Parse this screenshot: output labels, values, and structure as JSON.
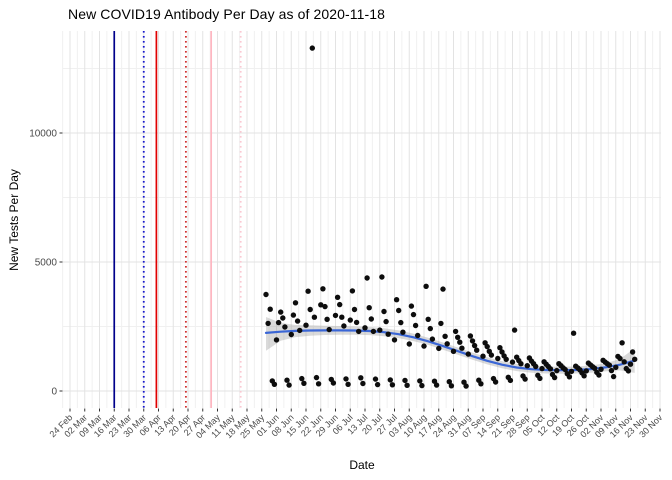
{
  "title": "New COVID19 Antibody Per Day as of 2020-11-18",
  "chart_data": {
    "type": "scatter",
    "title": "New COVID19 Antibody Per Day as of 2020-11-18",
    "xlabel": "Date",
    "ylabel": "New Tests Per Day",
    "grid": true,
    "legend": "none",
    "x_range": [
      "2020-02-24",
      "2020-11-30"
    ],
    "ylim": [
      -660,
      13950
    ],
    "y_axis": {
      "ticks": [
        0,
        5000,
        10000
      ],
      "minor_ticks": [
        2500,
        7500,
        12500
      ]
    },
    "x_axis": {
      "tick_labels": [
        "24 Feb",
        "02 Mar",
        "09 Mar",
        "16 Mar",
        "23 Mar",
        "30 Mar",
        "06 Apr",
        "13 Apr",
        "20 Apr",
        "27 Apr",
        "04 May",
        "11 May",
        "18 May",
        "25 May",
        "01 Jun",
        "08 Jun",
        "15 Jun",
        "22 Jun",
        "29 Jun",
        "06 Jul",
        "13 Jul",
        "20 Jul",
        "27 Jul",
        "03 Aug",
        "10 Aug",
        "17 Aug",
        "24 Aug",
        "31 Aug",
        "07 Sep",
        "14 Sep",
        "21 Sep",
        "28 Sep",
        "05 Oct",
        "12 Oct",
        "19 Oct",
        "26 Oct",
        "02 Nov",
        "09 Nov",
        "16 Nov",
        "23 Nov",
        "30 Nov"
      ],
      "tick_dates": [
        "2020-02-24",
        "2020-03-02",
        "2020-03-09",
        "2020-03-16",
        "2020-03-23",
        "2020-03-30",
        "2020-04-06",
        "2020-04-13",
        "2020-04-20",
        "2020-04-27",
        "2020-05-04",
        "2020-05-11",
        "2020-05-18",
        "2020-05-25",
        "2020-06-01",
        "2020-06-08",
        "2020-06-15",
        "2020-06-22",
        "2020-06-29",
        "2020-07-06",
        "2020-07-13",
        "2020-07-20",
        "2020-07-27",
        "2020-08-03",
        "2020-08-10",
        "2020-08-17",
        "2020-08-24",
        "2020-08-31",
        "2020-09-07",
        "2020-09-14",
        "2020-09-21",
        "2020-09-28",
        "2020-10-05",
        "2020-10-12",
        "2020-10-19",
        "2020-10-26",
        "2020-11-02",
        "2020-11-09",
        "2020-11-16",
        "2020-11-23",
        "2020-11-30"
      ]
    },
    "vlines": [
      {
        "date": "2020-03-16",
        "color": "#00008B",
        "style": "solid"
      },
      {
        "date": "2020-03-30",
        "color": "#1515CD",
        "style": "dotted"
      },
      {
        "date": "2020-04-05",
        "color": "#E00000",
        "style": "solid"
      },
      {
        "date": "2020-04-19",
        "color": "#D03030",
        "style": "dotted"
      },
      {
        "date": "2020-05-01",
        "color": "#FFB6C1",
        "style": "solid"
      },
      {
        "date": "2020-05-15",
        "color": "#FAC8D2",
        "style": "dotted"
      }
    ],
    "smooth": {
      "color": "#3A66D6",
      "ribbon_color": "#9e9e9e",
      "points": [
        [
          "2020-05-27",
          2250,
          1560,
          2870
        ],
        [
          "2020-06-03",
          2300,
          1950,
          2640
        ],
        [
          "2020-06-10",
          2330,
          2090,
          2560
        ],
        [
          "2020-06-17",
          2345,
          2140,
          2545
        ],
        [
          "2020-06-24",
          2350,
          2170,
          2530
        ],
        [
          "2020-07-01",
          2350,
          2180,
          2520
        ],
        [
          "2020-07-08",
          2345,
          2180,
          2505
        ],
        [
          "2020-07-15",
          2325,
          2165,
          2480
        ],
        [
          "2020-07-22",
          2280,
          2125,
          2435
        ],
        [
          "2020-07-29",
          2200,
          2050,
          2350
        ],
        [
          "2020-08-05",
          2080,
          1935,
          2225
        ],
        [
          "2020-08-12",
          1925,
          1785,
          2065
        ],
        [
          "2020-08-19",
          1740,
          1600,
          1880
        ],
        [
          "2020-08-26",
          1545,
          1405,
          1685
        ],
        [
          "2020-09-02",
          1350,
          1210,
          1490
        ],
        [
          "2020-09-09",
          1170,
          1030,
          1310
        ],
        [
          "2020-09-16",
          1020,
          880,
          1160
        ],
        [
          "2020-09-23",
          910,
          770,
          1050
        ],
        [
          "2020-09-30",
          845,
          710,
          980
        ],
        [
          "2020-10-07",
          815,
          680,
          950
        ],
        [
          "2020-10-14",
          805,
          670,
          940
        ],
        [
          "2020-10-21",
          815,
          680,
          950
        ],
        [
          "2020-10-28",
          850,
          710,
          990
        ],
        [
          "2020-11-04",
          915,
          760,
          1070
        ],
        [
          "2020-11-11",
          1020,
          800,
          1240
        ],
        [
          "2020-11-18",
          1180,
          700,
          1660
        ]
      ]
    },
    "points": [
      [
        "2020-05-27",
        3740
      ],
      [
        "2020-05-28",
        2620
      ],
      [
        "2020-05-29",
        3170
      ],
      [
        "2020-05-30",
        390
      ],
      [
        "2020-05-31",
        260
      ],
      [
        "2020-06-01",
        1980
      ],
      [
        "2020-06-02",
        2650
      ],
      [
        "2020-06-03",
        3060
      ],
      [
        "2020-06-04",
        2830
      ],
      [
        "2020-06-05",
        2480
      ],
      [
        "2020-06-06",
        420
      ],
      [
        "2020-06-07",
        230
      ],
      [
        "2020-06-08",
        2190
      ],
      [
        "2020-06-09",
        2940
      ],
      [
        "2020-06-10",
        3420
      ],
      [
        "2020-06-11",
        2710
      ],
      [
        "2020-06-12",
        2350
      ],
      [
        "2020-06-13",
        480
      ],
      [
        "2020-06-14",
        300
      ],
      [
        "2020-06-15",
        2550
      ],
      [
        "2020-06-16",
        3870
      ],
      [
        "2020-06-17",
        3160
      ],
      [
        "2020-06-18",
        13290
      ],
      [
        "2020-06-19",
        2860
      ],
      [
        "2020-06-20",
        520
      ],
      [
        "2020-06-21",
        280
      ],
      [
        "2020-06-22",
        3340
      ],
      [
        "2020-06-23",
        3960
      ],
      [
        "2020-06-24",
        3270
      ],
      [
        "2020-06-25",
        2780
      ],
      [
        "2020-06-26",
        2380
      ],
      [
        "2020-06-27",
        450
      ],
      [
        "2020-06-28",
        310
      ],
      [
        "2020-06-29",
        2930
      ],
      [
        "2020-06-30",
        3630
      ],
      [
        "2020-07-01",
        3350
      ],
      [
        "2020-07-02",
        2860
      ],
      [
        "2020-07-03",
        2520
      ],
      [
        "2020-07-04",
        470
      ],
      [
        "2020-07-05",
        260
      ],
      [
        "2020-07-06",
        2750
      ],
      [
        "2020-07-07",
        3880
      ],
      [
        "2020-07-08",
        3160
      ],
      [
        "2020-07-09",
        2660
      ],
      [
        "2020-07-10",
        2310
      ],
      [
        "2020-07-11",
        510
      ],
      [
        "2020-07-12",
        290
      ],
      [
        "2020-07-13",
        2450
      ],
      [
        "2020-07-14",
        4380
      ],
      [
        "2020-07-15",
        3230
      ],
      [
        "2020-07-16",
        2790
      ],
      [
        "2020-07-17",
        2310
      ],
      [
        "2020-07-18",
        460
      ],
      [
        "2020-07-19",
        250
      ],
      [
        "2020-07-20",
        2360
      ],
      [
        "2020-07-21",
        4420
      ],
      [
        "2020-07-22",
        3080
      ],
      [
        "2020-07-23",
        2690
      ],
      [
        "2020-07-24",
        2200
      ],
      [
        "2020-07-25",
        430
      ],
      [
        "2020-07-26",
        240
      ],
      [
        "2020-07-27",
        1980
      ],
      [
        "2020-07-28",
        3540
      ],
      [
        "2020-07-29",
        3120
      ],
      [
        "2020-07-30",
        2650
      ],
      [
        "2020-07-31",
        2280
      ],
      [
        "2020-08-01",
        410
      ],
      [
        "2020-08-02",
        220
      ],
      [
        "2020-08-03",
        1820
      ],
      [
        "2020-08-04",
        3290
      ],
      [
        "2020-08-05",
        2960
      ],
      [
        "2020-08-06",
        2540
      ],
      [
        "2020-08-07",
        2150
      ],
      [
        "2020-08-08",
        390
      ],
      [
        "2020-08-09",
        210
      ],
      [
        "2020-08-10",
        1740
      ],
      [
        "2020-08-11",
        4060
      ],
      [
        "2020-08-12",
        2780
      ],
      [
        "2020-08-13",
        2420
      ],
      [
        "2020-08-14",
        2010
      ],
      [
        "2020-08-15",
        380
      ],
      [
        "2020-08-16",
        230
      ],
      [
        "2020-08-17",
        1650
      ],
      [
        "2020-08-18",
        2620
      ],
      [
        "2020-08-19",
        3950
      ],
      [
        "2020-08-20",
        2120
      ],
      [
        "2020-08-21",
        1830
      ],
      [
        "2020-08-22",
        360
      ],
      [
        "2020-08-23",
        200
      ],
      [
        "2020-08-24",
        1540
      ],
      [
        "2020-08-25",
        2310
      ],
      [
        "2020-08-26",
        2080
      ],
      [
        "2020-08-27",
        1890
      ],
      [
        "2020-08-28",
        1660
      ],
      [
        "2020-08-29",
        340
      ],
      [
        "2020-08-30",
        190
      ],
      [
        "2020-08-31",
        1430
      ],
      [
        "2020-09-01",
        2130
      ],
      [
        "2020-09-02",
        1940
      ],
      [
        "2020-09-03",
        1760
      ],
      [
        "2020-09-04",
        1580
      ],
      [
        "2020-09-05",
        420
      ],
      [
        "2020-09-06",
        280
      ],
      [
        "2020-09-07",
        1350
      ],
      [
        "2020-09-08",
        1870
      ],
      [
        "2020-09-09",
        1720
      ],
      [
        "2020-09-10",
        1540
      ],
      [
        "2020-09-11",
        1390
      ],
      [
        "2020-09-12",
        480
      ],
      [
        "2020-09-13",
        350
      ],
      [
        "2020-09-14",
        1260
      ],
      [
        "2020-09-15",
        1680
      ],
      [
        "2020-09-16",
        1510
      ],
      [
        "2020-09-17",
        1360
      ],
      [
        "2020-09-18",
        1230
      ],
      [
        "2020-09-19",
        530
      ],
      [
        "2020-09-20",
        410
      ],
      [
        "2020-09-21",
        1120
      ],
      [
        "2020-09-22",
        2360
      ],
      [
        "2020-09-23",
        1310
      ],
      [
        "2020-09-24",
        1180
      ],
      [
        "2020-09-25",
        1060
      ],
      [
        "2020-09-26",
        580
      ],
      [
        "2020-09-27",
        460
      ],
      [
        "2020-09-28",
        980
      ],
      [
        "2020-09-29",
        1280
      ],
      [
        "2020-09-30",
        1160
      ],
      [
        "2020-10-01",
        1060
      ],
      [
        "2020-10-02",
        950
      ],
      [
        "2020-10-03",
        610
      ],
      [
        "2020-10-04",
        490
      ],
      [
        "2020-10-05",
        870
      ],
      [
        "2020-10-06",
        1130
      ],
      [
        "2020-10-07",
        1040
      ],
      [
        "2020-10-08",
        950
      ],
      [
        "2020-10-09",
        860
      ],
      [
        "2020-10-10",
        640
      ],
      [
        "2020-10-11",
        520
      ],
      [
        "2020-10-12",
        790
      ],
      [
        "2020-10-13",
        1060
      ],
      [
        "2020-10-14",
        980
      ],
      [
        "2020-10-15",
        900
      ],
      [
        "2020-10-16",
        830
      ],
      [
        "2020-10-17",
        670
      ],
      [
        "2020-10-18",
        550
      ],
      [
        "2020-10-19",
        760
      ],
      [
        "2020-10-20",
        2240
      ],
      [
        "2020-10-21",
        960
      ],
      [
        "2020-10-22",
        890
      ],
      [
        "2020-10-23",
        820
      ],
      [
        "2020-10-24",
        700
      ],
      [
        "2020-10-25",
        590
      ],
      [
        "2020-10-26",
        780
      ],
      [
        "2020-10-27",
        1080
      ],
      [
        "2020-10-28",
        1010
      ],
      [
        "2020-10-29",
        940
      ],
      [
        "2020-10-30",
        880
      ],
      [
        "2020-10-31",
        720
      ],
      [
        "2020-11-01",
        620
      ],
      [
        "2020-11-02",
        840
      ],
      [
        "2020-11-03",
        1190
      ],
      [
        "2020-11-04",
        1120
      ],
      [
        "2020-11-05",
        1060
      ],
      [
        "2020-11-06",
        1000
      ],
      [
        "2020-11-07",
        790
      ],
      [
        "2020-11-08",
        560
      ],
      [
        "2020-11-09",
        920
      ],
      [
        "2020-11-10",
        1340
      ],
      [
        "2020-11-11",
        1260
      ],
      [
        "2020-11-12",
        1870
      ],
      [
        "2020-11-13",
        1130
      ],
      [
        "2020-11-14",
        870
      ],
      [
        "2020-11-15",
        780
      ],
      [
        "2020-11-16",
        1040
      ],
      [
        "2020-11-17",
        1510
      ],
      [
        "2020-11-18",
        1230
      ]
    ],
    "colors": {
      "point": "#0d0d0d",
      "grid_major": "#e3e3e3",
      "grid_minor": "#f0f0f0",
      "tick_mark": "#333333",
      "tick_label": "#4a4a4a",
      "background": "#ffffff"
    }
  }
}
